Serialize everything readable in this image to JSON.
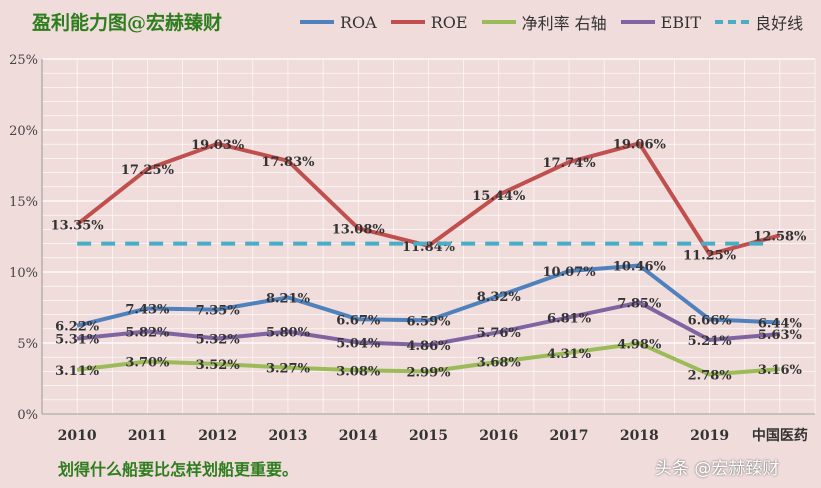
{
  "header": {
    "title": "盈利能力图@宏赫臻财"
  },
  "footer": {
    "text": "划得什么船要比怎样划船更重要。",
    "watermark": "头条 @宏赫臻财"
  },
  "chart_data": {
    "type": "line",
    "categories": [
      "2010",
      "2011",
      "2012",
      "2013",
      "2014",
      "2015",
      "2016",
      "2017",
      "2018",
      "2019",
      "中国医药"
    ],
    "ylim": [
      0,
      25
    ],
    "yticks": [
      "0%",
      "5%",
      "10%",
      "15%",
      "20%",
      "25%"
    ],
    "grid": true,
    "legend_position": "top",
    "series": [
      {
        "name": "ROA",
        "color": "#4f81bd",
        "values": [
          6.22,
          7.43,
          7.35,
          8.21,
          6.67,
          6.59,
          8.32,
          10.07,
          10.46,
          6.66,
          6.44
        ],
        "labels": [
          "6.22%",
          "7.43%",
          "7.35%",
          "8.21%",
          "6.67%",
          "6.59%",
          "8.32%",
          "10.07%",
          "10.46%",
          "6.66%",
          "6.44%"
        ]
      },
      {
        "name": "ROE",
        "color": "#c0504d",
        "values": [
          13.35,
          17.25,
          19.03,
          17.83,
          13.08,
          11.84,
          15.44,
          17.74,
          19.06,
          11.25,
          12.58
        ],
        "labels": [
          "13.35%",
          "17.25%",
          "19.03%",
          "17.83%",
          "13.08%",
          "11.84%",
          "15.44%",
          "17.74%",
          "19.06%",
          "11.25%",
          "12.58%"
        ]
      },
      {
        "name": "净利率 右轴",
        "color": "#9bbb59",
        "values": [
          3.11,
          3.7,
          3.52,
          3.27,
          3.08,
          2.99,
          3.68,
          4.31,
          4.98,
          2.78,
          3.16
        ],
        "labels": [
          "3.11%",
          "3.70%",
          "3.52%",
          "3.27%",
          "3.08%",
          "2.99%",
          "3.68%",
          "4.31%",
          "4.98%",
          "2.78%",
          "3.16%"
        ]
      },
      {
        "name": "EBIT",
        "color": "#8064a2",
        "values": [
          5.31,
          5.82,
          5.32,
          5.8,
          5.04,
          4.86,
          5.76,
          6.81,
          7.85,
          5.21,
          5.63
        ],
        "labels": [
          "5.31%",
          "5.82%",
          "5.32%",
          "5.80%",
          "5.04%",
          "4.86%",
          "5.76%",
          "6.81%",
          "7.85%",
          "5.21%",
          "5.63%"
        ]
      },
      {
        "name": "良好线",
        "color": "#4bacc6",
        "dashed": true,
        "values": [
          12,
          12,
          12,
          12,
          12,
          12,
          12,
          12,
          12,
          12,
          12
        ]
      }
    ]
  }
}
